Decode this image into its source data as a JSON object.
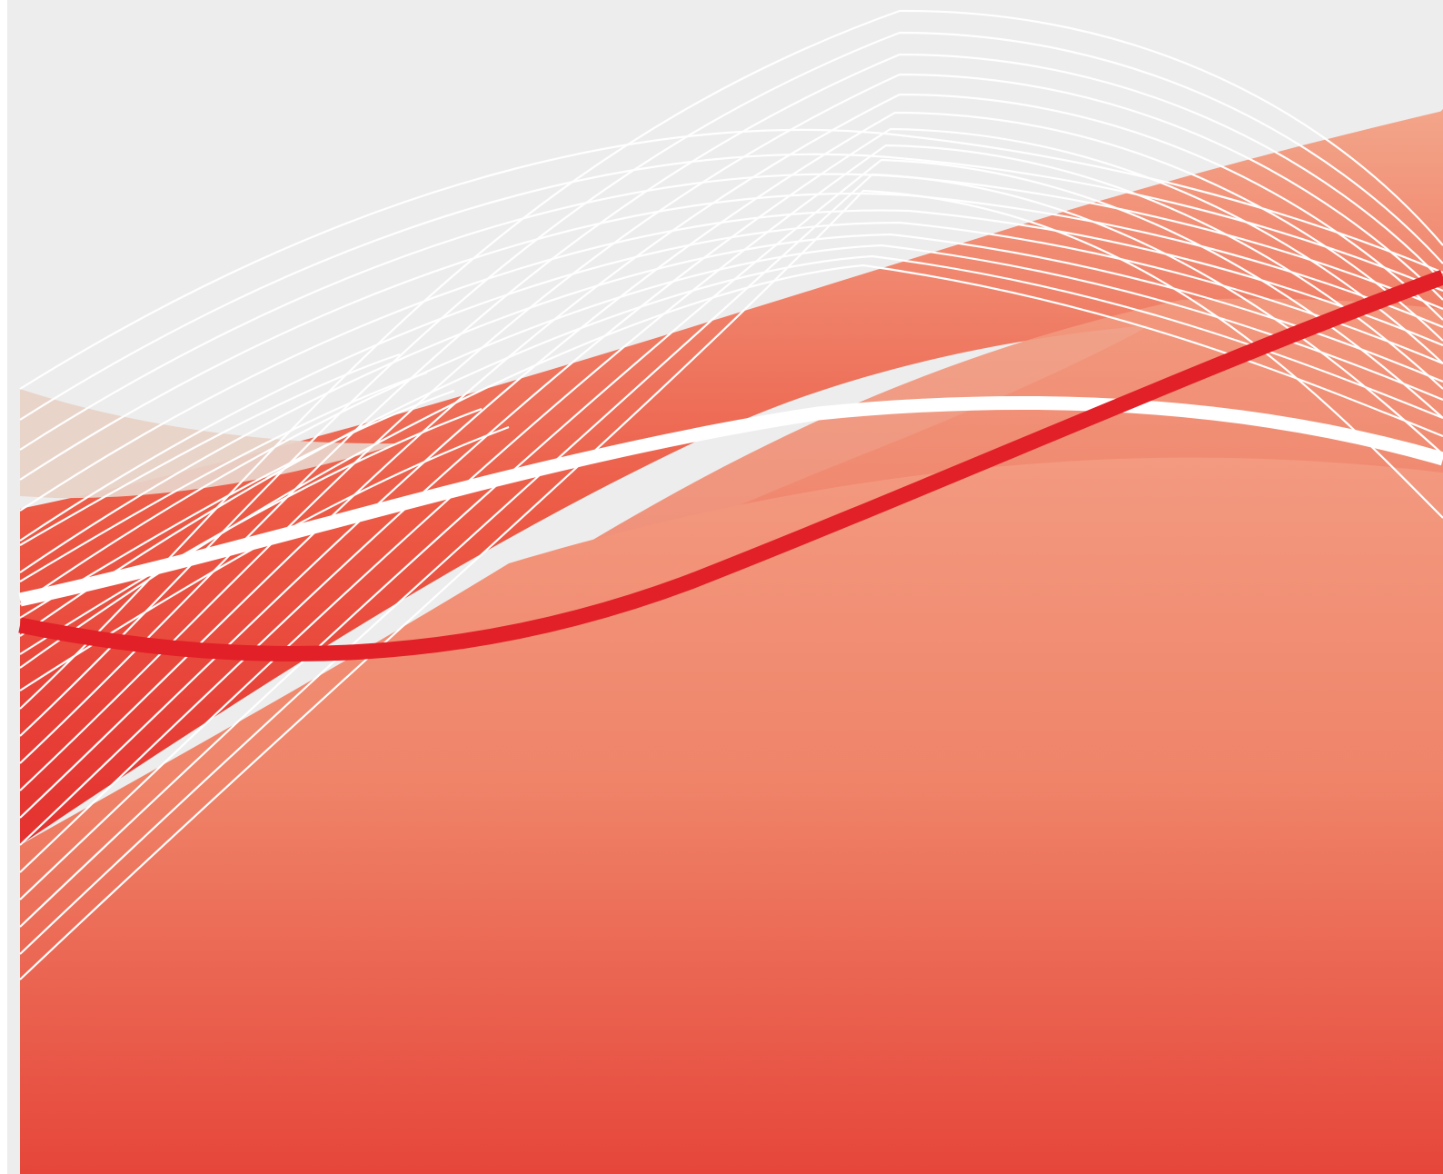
{
  "artwork": {
    "subject": "abstract-wave-background",
    "colors": {
      "canvas_gray": "#EDEDED",
      "left_strip_white": "#FFFFFF",
      "red_dark": "#E63A32",
      "red_mid": "#EE6E57",
      "peach_light": "#F3A58A",
      "beige_overlay": "#E9D3C8",
      "line_white": "#FFFFFF",
      "accent_red": "#E22028"
    }
  }
}
